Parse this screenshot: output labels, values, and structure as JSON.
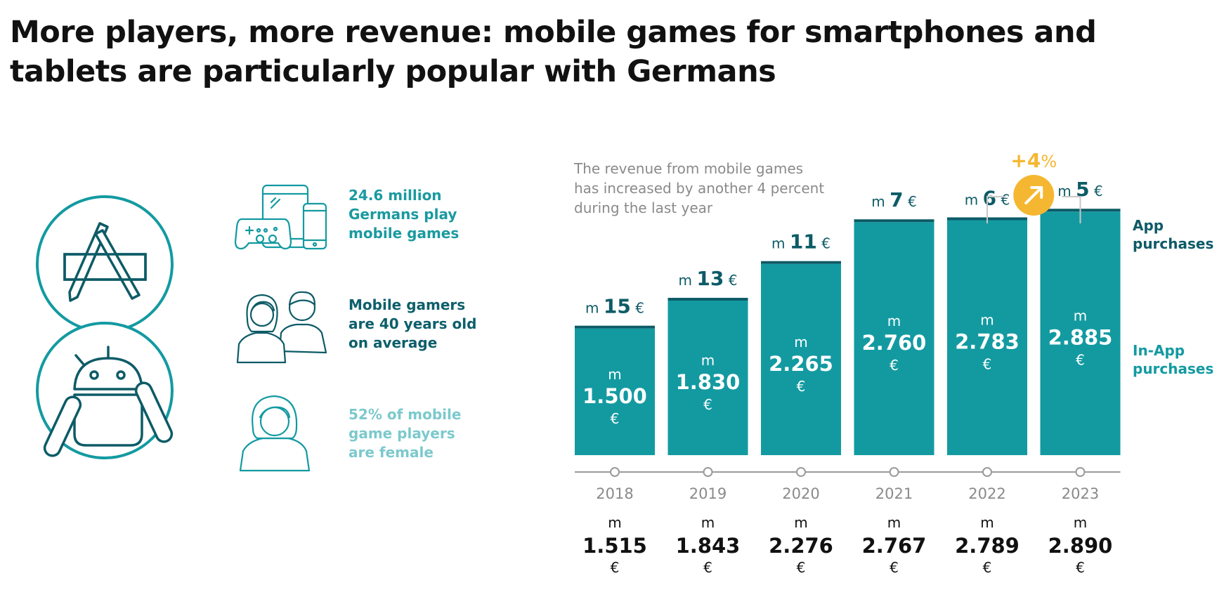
{
  "title": {
    "line1": "More players, more revenue: mobile games for smartphones and",
    "line2": "tablets are particularly popular with Germans"
  },
  "facts": [
    {
      "lines": [
        "24.6 million",
        "Germans play",
        "mobile games"
      ],
      "color": "#1a9aa0",
      "icon": "gaming-devices-icon"
    },
    {
      "lines": [
        "Mobile gamers",
        "are 40 years old",
        "on average"
      ],
      "color": "#0d5f6b",
      "icon": "couple-icon"
    },
    {
      "lines": [
        "52% of mobile",
        "game players",
        "are female"
      ],
      "color": "#7cc9cc",
      "icon": "woman-icon"
    }
  ],
  "intro": {
    "lines": [
      "The revenue from mobile games",
      "has increased by another 4 percent",
      "during the last year"
    ]
  },
  "growth": {
    "label": "+4",
    "unit": "%",
    "color": "#f5b731"
  },
  "legend": {
    "app_purchases": [
      "App",
      "purchases"
    ],
    "in_app_purchases": [
      "In-App",
      "purchases"
    ]
  },
  "chart_data": {
    "type": "bar",
    "categories": [
      "2018",
      "2019",
      "2020",
      "2021",
      "2022",
      "2023"
    ],
    "series": [
      {
        "name": "In-App purchases",
        "values": [
          1500,
          1830,
          2265,
          2760,
          2783,
          2885
        ],
        "labels": [
          "1.500",
          "1.830",
          "2.265",
          "2.760",
          "2.783",
          "2.885"
        ]
      },
      {
        "name": "App purchases",
        "values": [
          15,
          13,
          11,
          7,
          6,
          5
        ],
        "labels": [
          "15",
          "13",
          "11",
          "7",
          "6",
          "5"
        ]
      }
    ],
    "totals": {
      "values": [
        1515,
        1843,
        2276,
        2767,
        2789,
        2890
      ],
      "labels": [
        "1.515",
        "1.843",
        "2.276",
        "2.767",
        "2.789",
        "2.890"
      ]
    },
    "unit_prefix": "m",
    "currency": "€",
    "colors": {
      "in_app": "#139aa1",
      "app": "#0d5b67",
      "axis": "#9a9a9a",
      "year": "#8a8a8a"
    }
  }
}
